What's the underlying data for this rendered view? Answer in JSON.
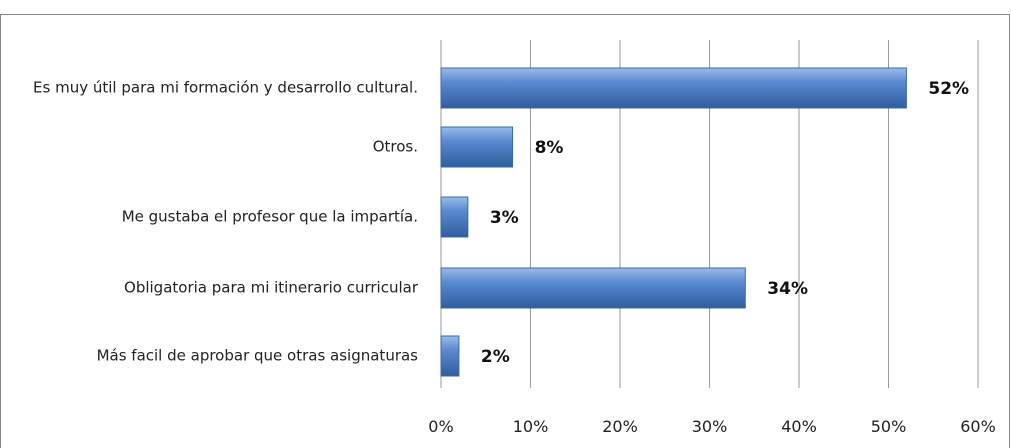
{
  "chart_data": {
    "type": "bar",
    "orientation": "horizontal",
    "categories": [
      "Es muy útil para mi formación y desarrollo cultural.",
      "Otros.",
      "Me gustaba el profesor que la impartía.",
      "Obligatoria para mi itinerario curricular",
      "Más facil de aprobar que otras asignaturas"
    ],
    "values": [
      52,
      8,
      3,
      34,
      2
    ],
    "value_labels": [
      "52%",
      "8%",
      "3%",
      "34%",
      "2%"
    ],
    "color": "#4a7ebb",
    "xlim": [
      0,
      60
    ],
    "xticks": [
      {
        "value": 0,
        "label": "0%"
      },
      {
        "value": 10,
        "label": "10%"
      },
      {
        "value": 20,
        "label": "20%"
      },
      {
        "value": 30,
        "label": "30%"
      },
      {
        "value": 40,
        "label": "40%"
      },
      {
        "value": 50,
        "label": "50%"
      },
      {
        "value": 60,
        "label": "60%"
      }
    ],
    "grid": true
  }
}
